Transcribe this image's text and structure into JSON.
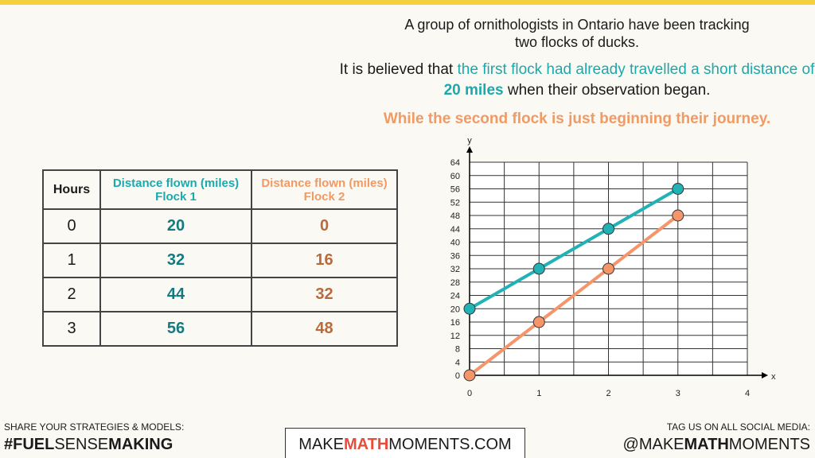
{
  "header": {
    "intro": "A group of ornithologists in Ontario have been tracking two flocks of ducks.",
    "belief": [
      "It is believed that ",
      "the first flock had already travelled a short distance of ",
      "20 miles",
      " when their observation began."
    ],
    "second": "While the second flock is just beginning their journey."
  },
  "table": {
    "header": [
      "Hours",
      [
        "Distance flown (miles)",
        "Flock 1"
      ],
      [
        "Distance flown (miles)",
        "Flock 2"
      ]
    ],
    "rows": [
      [
        "0",
        "20",
        "0"
      ],
      [
        "1",
        "32",
        "16"
      ],
      [
        "2",
        "44",
        "32"
      ],
      [
        "3",
        "56",
        "48"
      ]
    ]
  },
  "chart_data": {
    "type": "line",
    "x_label": "x",
    "y_label": "y",
    "x": [
      0,
      1,
      2,
      3
    ],
    "series": [
      {
        "color": "#20b2b4",
        "values": [
          20,
          32,
          44,
          56
        ]
      },
      {
        "color": "#f5956a",
        "values": [
          0,
          16,
          32,
          48
        ]
      }
    ],
    "xlim": [
      0,
      4
    ],
    "xticks": [
      0,
      1,
      2,
      3,
      4
    ],
    "ylim": [
      0,
      64
    ],
    "yticks": [
      0,
      4,
      8,
      12,
      16,
      20,
      24,
      28,
      32,
      36,
      40,
      44,
      48,
      52,
      56,
      60,
      64
    ],
    "grid": true
  },
  "footer": {
    "left_caption": "SHARE YOUR STRATEGIES & MODELS:",
    "left_tag": [
      "#",
      "FUEL",
      "SENSE",
      "MAKING"
    ],
    "site": [
      "MAKE",
      "MATH",
      "MOMENTS",
      ".COM"
    ],
    "right_caption": "TAG US ON ALL SOCIAL MEDIA:",
    "right_tag": [
      "@MAKE",
      "MATH",
      "MOMENTS"
    ]
  }
}
